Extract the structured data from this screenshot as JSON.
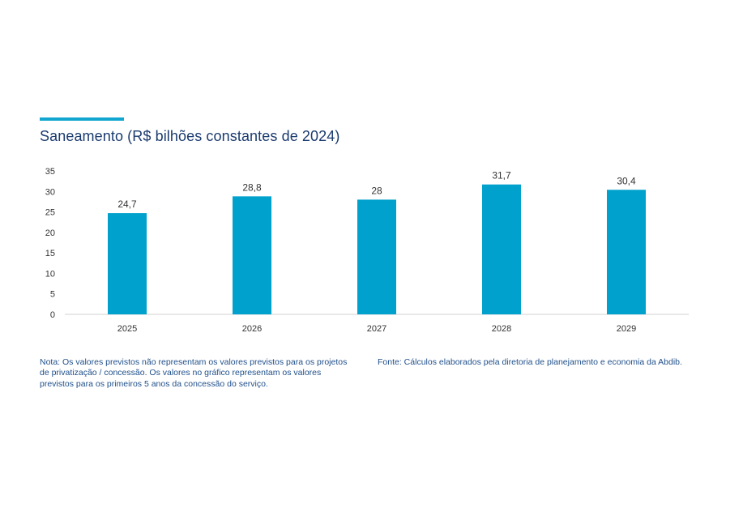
{
  "title": "Saneamento (R$ bilhões constantes de 2024)",
  "chart_data": {
    "type": "bar",
    "categories": [
      "2025",
      "2026",
      "2027",
      "2028",
      "2029"
    ],
    "values": [
      24.7,
      28.8,
      28,
      31.7,
      30.4
    ],
    "value_labels": [
      "24,7",
      "28,8",
      "28",
      "31,7",
      "30,4"
    ],
    "yticks": [
      "0",
      "5",
      "10",
      "15",
      "20",
      "25",
      "30",
      "35"
    ],
    "ylim": [
      0,
      35
    ],
    "bar_color": "#00a1cc",
    "grid": false,
    "legend": "none"
  },
  "note": "Nota: Os valores previstos não representam os valores previstos para os projetos de privatização / concessão. Os valores no gráfico representam os valores previstos para os primeiros 5 anos da concessão do serviço.",
  "source": "Fonte: Cálculos elaborados pela diretoria de planejamento e economia da Abdib."
}
